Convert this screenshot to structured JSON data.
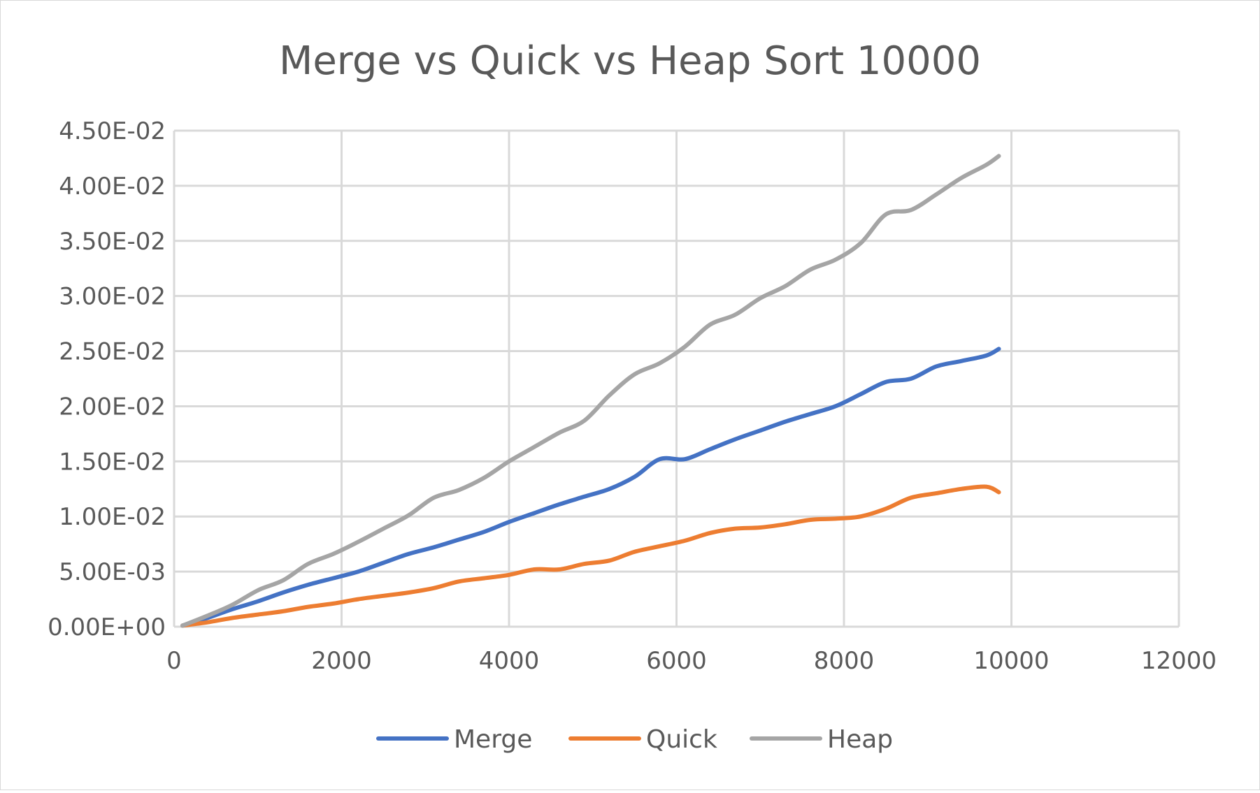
{
  "chart_data": {
    "type": "line",
    "title": "Merge vs Quick vs Heap Sort 10000",
    "xlabel": "",
    "ylabel": "",
    "xlim": [
      0,
      12000
    ],
    "ylim": [
      0,
      0.045
    ],
    "grid": true,
    "legend_position": "bottom",
    "x_ticks": [
      "0",
      "2000",
      "4000",
      "6000",
      "8000",
      "10000",
      "12000"
    ],
    "y_ticks": [
      "0.00E+00",
      "5.00E-03",
      "1.00E-02",
      "1.50E-02",
      "2.00E-02",
      "2.50E-02",
      "3.00E-02",
      "3.50E-02",
      "4.00E-02",
      "4.50E-02"
    ],
    "x": [
      100,
      400,
      700,
      1000,
      1300,
      1600,
      1900,
      2200,
      2500,
      2800,
      3100,
      3400,
      3700,
      4000,
      4300,
      4600,
      4900,
      5200,
      5500,
      5800,
      6100,
      6400,
      6700,
      7000,
      7300,
      7600,
      7900,
      8200,
      8500,
      8800,
      9100,
      9400,
      9700,
      9850
    ],
    "series": [
      {
        "name": "Merge",
        "color": "#4472C4",
        "values": [
          0.0001,
          0.0008,
          0.0016,
          0.0023,
          0.0031,
          0.0038,
          0.0044,
          0.005,
          0.0058,
          0.0066,
          0.0072,
          0.0079,
          0.0086,
          0.0095,
          0.0103,
          0.0111,
          0.0118,
          0.0125,
          0.0136,
          0.0152,
          0.0152,
          0.0161,
          0.017,
          0.0178,
          0.0186,
          0.0193,
          0.02,
          0.0211,
          0.0222,
          0.0225,
          0.0236,
          0.0241,
          0.0246,
          0.0252
        ]
      },
      {
        "name": "Quick",
        "color": "#ED7D31",
        "values": [
          0.0001,
          0.0004,
          0.0008,
          0.0011,
          0.0014,
          0.0018,
          0.0021,
          0.0025,
          0.0028,
          0.0031,
          0.0035,
          0.0041,
          0.0044,
          0.0047,
          0.0052,
          0.0052,
          0.0057,
          0.006,
          0.0068,
          0.0073,
          0.0078,
          0.0085,
          0.0089,
          0.009,
          0.0093,
          0.0097,
          0.0098,
          0.01,
          0.0107,
          0.0117,
          0.0121,
          0.0125,
          0.0127,
          0.0122
        ]
      },
      {
        "name": "Heap",
        "color": "#A5A5A5",
        "values": [
          0.0001,
          0.001,
          0.002,
          0.0033,
          0.0042,
          0.0057,
          0.0066,
          0.0077,
          0.0089,
          0.0101,
          0.0117,
          0.0124,
          0.0135,
          0.015,
          0.0163,
          0.0176,
          0.0187,
          0.021,
          0.0229,
          0.0239,
          0.0254,
          0.0274,
          0.0283,
          0.0298,
          0.0309,
          0.0324,
          0.0333,
          0.0348,
          0.0374,
          0.0378,
          0.0392,
          0.0407,
          0.0419,
          0.0427
        ]
      }
    ]
  }
}
